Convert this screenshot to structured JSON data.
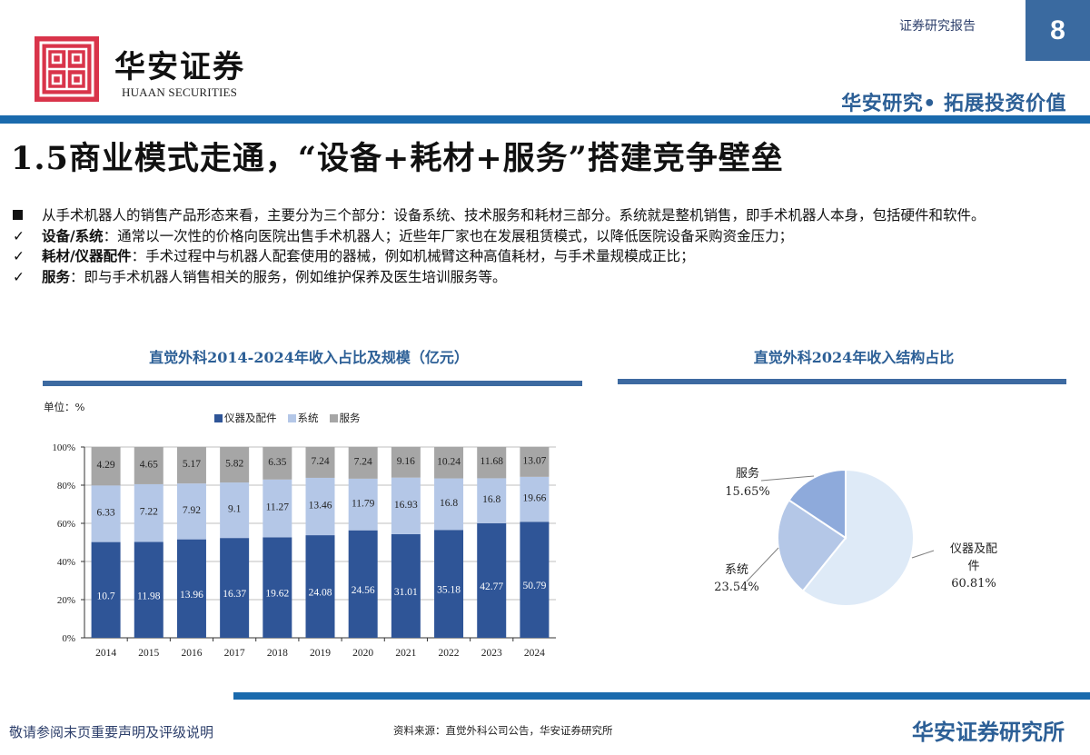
{
  "header": {
    "logo_cn": "华安证券",
    "logo_en": "HUAAN SECURITIES",
    "report_type": "证券研究报告",
    "page_number": "8",
    "slogan": "华安研究• 拓展投资价值",
    "colors": {
      "brand_red": "#d9344a",
      "brand_blue": "#1a6aad",
      "accent_blue": "#2c5f96"
    }
  },
  "title": "1.5商业模式走通，“设备+耗材+服务”搭建竞争壁垒",
  "bullets": [
    {
      "marker": "square",
      "bold": "",
      "text": "从手术机器人的销售产品形态来看，主要分为三个部分：设备系统、技术服务和耗材三部分。系统就是整机销售，即手术机器人本身，包括硬件和软件。"
    },
    {
      "marker": "check",
      "bold": "设备/系统",
      "text": "：通常以一次性的价格向医院出售手术机器人；近些年厂家也在发展租赁模式，以降低医院设备采购资金压力；"
    },
    {
      "marker": "check",
      "bold": "耗材/仪器配件",
      "text": "：手术过程中与机器人配套使用的器械，例如机械臂这种高值耗材，与手术量规模成正比；"
    },
    {
      "marker": "check",
      "bold": "服务",
      "text": "：即与手术机器人销售相关的服务，例如维护保养及医生培训服务等。"
    }
  ],
  "left_section": {
    "title": "直觉外科2014-2024年收入占比及规模（亿元）",
    "unit_label": "单位：%",
    "legend": [
      {
        "label": "仪器及配件",
        "color": "#2f5597"
      },
      {
        "label": "系统",
        "color": "#b4c7e7"
      },
      {
        "label": "服务",
        "color": "#a6a6a6"
      }
    ]
  },
  "right_section": {
    "title": "直觉外科2024年收入结构占比"
  },
  "chart_data": [
    {
      "type": "bar",
      "stacked": "percent",
      "title": "直觉外科2014-2024年收入占比及规模（亿元）",
      "xlabel": "",
      "ylabel": "单位：%",
      "ylim": [
        0,
        100
      ],
      "yticks": [
        "0%",
        "20%",
        "40%",
        "60%",
        "80%",
        "100%"
      ],
      "grid": true,
      "legend_position": "top",
      "categories": [
        "2014",
        "2015",
        "2016",
        "2017",
        "2018",
        "2019",
        "2020",
        "2021",
        "2022",
        "2023",
        "2024"
      ],
      "series": [
        {
          "name": "仪器及配件",
          "color": "#2f5597",
          "values": [
            10.7,
            11.98,
            13.96,
            16.37,
            19.62,
            24.08,
            24.56,
            31.01,
            35.18,
            42.77,
            50.79
          ]
        },
        {
          "name": "系统",
          "color": "#b4c7e7",
          "values": [
            6.33,
            7.22,
            7.92,
            9.1,
            11.27,
            13.46,
            11.79,
            16.93,
            16.8,
            16.8,
            19.66
          ]
        },
        {
          "name": "服务",
          "color": "#a6a6a6",
          "values": [
            4.29,
            4.65,
            5.17,
            5.82,
            6.35,
            7.24,
            7.24,
            9.16,
            10.24,
            11.68,
            13.07
          ]
        }
      ]
    },
    {
      "type": "pie",
      "title": "直觉外科2024年收入结构占比",
      "categories": [
        "仪器及配件",
        "系统",
        "服务"
      ],
      "values": [
        60.81,
        23.54,
        15.65
      ],
      "labels": [
        "仪器及配件 60.81%",
        "系统 23.54%",
        "服务 15.65%"
      ],
      "colors": [
        "#deeaf7",
        "#b4c7e7",
        "#8eaadb"
      ]
    }
  ],
  "footer": {
    "disclaimer": "敬请参阅末页重要声明及评级说明",
    "source": "资料来源：直觉外科公司公告，华安证券研究所",
    "institute": "华安证券研究所"
  }
}
